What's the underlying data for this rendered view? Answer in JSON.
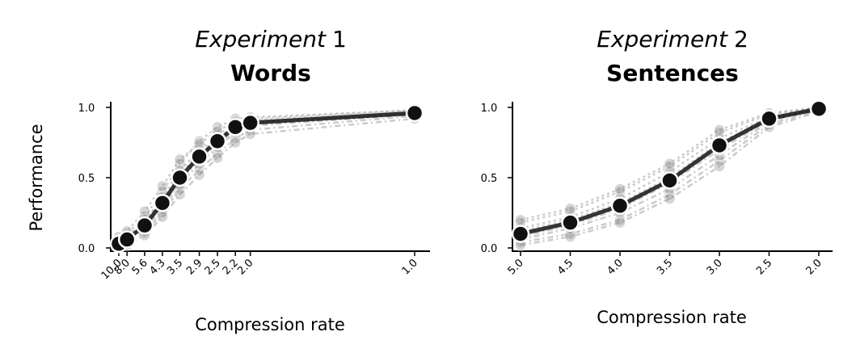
{
  "colors": {
    "mean": "#111111",
    "subjects": "#8c8c8c",
    "marker_edge": "#ffffff"
  },
  "chart_data": [
    {
      "type": "line",
      "title_italic": "Experiment",
      "title_number": "1",
      "subtitle": "Words",
      "xlabel": "Compression rate",
      "ylabel": "Performance",
      "x": [
        10.0,
        8.0,
        5.6,
        4.3,
        3.5,
        2.9,
        2.5,
        2.2,
        2.0,
        1.0
      ],
      "xtick_labels": [
        "10.0",
        "8.0",
        "5.6",
        "4.3",
        "3.5",
        "2.9",
        "2.5",
        "2.2",
        "2.0",
        "1.0"
      ],
      "xscale": "reciprocal",
      "yticks": [
        "0.0",
        "0.5",
        "1.0"
      ],
      "ylim": [
        0,
        1.05
      ],
      "series": [
        {
          "role": "mean",
          "values": [
            0.03,
            0.06,
            0.16,
            0.32,
            0.5,
            0.65,
            0.76,
            0.86,
            0.89,
            0.96
          ]
        },
        {
          "role": "participant",
          "values": [
            0.06,
            0.1,
            0.22,
            0.4,
            0.6,
            0.76,
            0.86,
            0.92,
            0.93,
            0.98
          ]
        },
        {
          "role": "participant",
          "values": [
            0.01,
            0.03,
            0.11,
            0.25,
            0.42,
            0.56,
            0.67,
            0.78,
            0.84,
            0.94
          ]
        },
        {
          "role": "participant",
          "values": [
            0.04,
            0.08,
            0.18,
            0.36,
            0.55,
            0.7,
            0.8,
            0.89,
            0.91,
            0.97
          ]
        },
        {
          "role": "participant",
          "values": [
            0.02,
            0.04,
            0.13,
            0.28,
            0.45,
            0.6,
            0.72,
            0.82,
            0.87,
            0.95
          ]
        },
        {
          "role": "participant",
          "values": [
            0.08,
            0.12,
            0.26,
            0.44,
            0.63,
            0.74,
            0.83,
            0.9,
            0.92,
            0.98
          ]
        },
        {
          "role": "participant",
          "values": [
            0.0,
            0.02,
            0.09,
            0.22,
            0.38,
            0.52,
            0.64,
            0.75,
            0.81,
            0.92
          ]
        },
        {
          "role": "participant",
          "values": [
            0.05,
            0.07,
            0.2,
            0.34,
            0.52,
            0.68,
            0.78,
            0.87,
            0.9,
            0.96
          ]
        },
        {
          "role": "participant",
          "values": [
            0.03,
            0.05,
            0.15,
            0.3,
            0.48,
            0.62,
            0.74,
            0.84,
            0.88,
            0.95
          ]
        }
      ]
    },
    {
      "type": "line",
      "title_italic": "Experiment",
      "title_number": "2",
      "subtitle": "Sentences",
      "xlabel": "Compression rate",
      "ylabel": "",
      "x": [
        5.0,
        4.5,
        4.0,
        3.5,
        3.0,
        2.5,
        2.0
      ],
      "xtick_labels": [
        "5.0",
        "4.5",
        "4.0",
        "3.5",
        "3.0",
        "2.5",
        "2.0"
      ],
      "xscale": "linear-reversed",
      "yticks": [
        "0.0",
        "0.5",
        "1.0"
      ],
      "ylim": [
        0,
        1.05
      ],
      "series": [
        {
          "role": "mean",
          "values": [
            0.1,
            0.18,
            0.3,
            0.48,
            0.73,
            0.92,
            0.99
          ]
        },
        {
          "role": "participant",
          "values": [
            0.18,
            0.26,
            0.4,
            0.58,
            0.82,
            0.95,
            1.0
          ]
        },
        {
          "role": "participant",
          "values": [
            0.04,
            0.1,
            0.2,
            0.38,
            0.62,
            0.88,
            0.98
          ]
        },
        {
          "role": "participant",
          "values": [
            0.14,
            0.22,
            0.35,
            0.54,
            0.78,
            0.93,
            0.99
          ]
        },
        {
          "role": "participant",
          "values": [
            0.06,
            0.14,
            0.25,
            0.42,
            0.66,
            0.9,
            0.99
          ]
        },
        {
          "role": "participant",
          "values": [
            0.2,
            0.28,
            0.42,
            0.6,
            0.84,
            0.96,
            1.0
          ]
        },
        {
          "role": "participant",
          "values": [
            0.02,
            0.08,
            0.18,
            0.35,
            0.58,
            0.86,
            0.97
          ]
        },
        {
          "role": "participant",
          "values": [
            0.12,
            0.2,
            0.32,
            0.5,
            0.75,
            0.92,
            0.99
          ]
        },
        {
          "role": "participant",
          "values": [
            0.08,
            0.16,
            0.28,
            0.46,
            0.7,
            0.91,
            0.98
          ]
        }
      ]
    }
  ]
}
